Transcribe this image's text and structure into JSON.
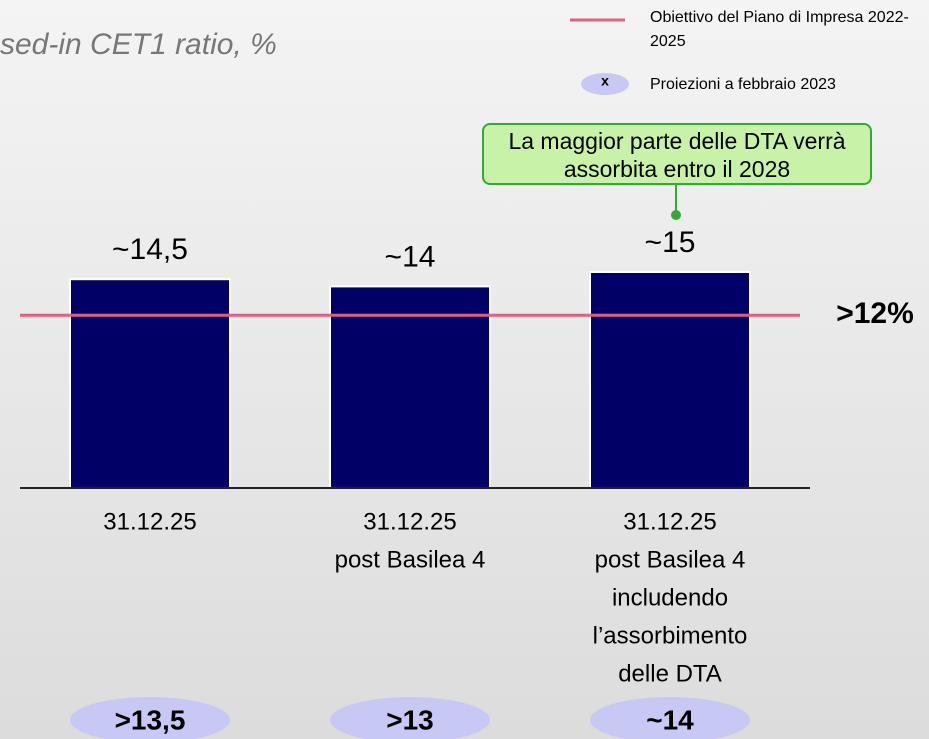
{
  "chart_data": {
    "type": "bar",
    "title": "sed-in CET1 ratio, %",
    "categories": [
      [
        "31.12.25"
      ],
      [
        "31.12.25",
        "post Basilea 4"
      ],
      [
        "31.12.25",
        "post Basilea 4",
        "includendo",
        "l’assorbimento",
        "delle DTA"
      ]
    ],
    "values": [
      14.5,
      14,
      15
    ],
    "value_labels": [
      "~14,5",
      "~14",
      "~15"
    ],
    "color": "#000066",
    "ylim": [
      0,
      15
    ],
    "target": {
      "name": "Obiettivo del Piano di Impresa 2022-2025",
      "value": 12,
      "label": ">12%",
      "color": "#e0607e"
    },
    "projections": {
      "name": "Proiezioni a febbraio 2023",
      "symbol": "x",
      "values": [
        13.5,
        13,
        14
      ],
      "value_labels": [
        ">13,5",
        ">13",
        "~14"
      ],
      "color": "#c8c8f5"
    },
    "annotation": "La maggior parte delle DTA verrà assorbita entro il 2028"
  }
}
